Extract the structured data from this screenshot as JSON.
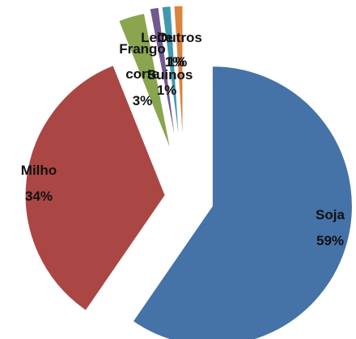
{
  "chart_data": {
    "type": "pie",
    "exploded": true,
    "slices": [
      {
        "label": "Soja",
        "percent_label": "59%",
        "value": 59,
        "color": "#4572A7"
      },
      {
        "label": "Milho",
        "percent_label": "34%",
        "value": 34,
        "color": "#AA4643"
      },
      {
        "label": "Frango corte",
        "percent_label": "3%",
        "value": 3,
        "color": "#89A54E"
      },
      {
        "label": "Leite",
        "percent_label": "1%",
        "value": 1,
        "color": "#71588F"
      },
      {
        "label": "Suinos",
        "percent_label": "1%",
        "value": 1,
        "color": "#4198AF"
      },
      {
        "label": "Outros",
        "percent_label": "1%",
        "value": 1,
        "color": "#DB843D"
      }
    ],
    "title": "",
    "legend": "none"
  }
}
